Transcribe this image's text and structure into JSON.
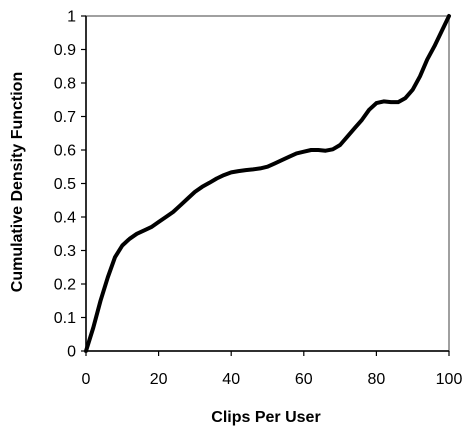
{
  "chart_data": {
    "type": "line",
    "title": "",
    "xlabel": "Clips Per User",
    "ylabel": "Cumulative Density Function",
    "xlim": [
      0,
      100
    ],
    "ylim": [
      0,
      1
    ],
    "x_ticks": [
      0,
      20,
      40,
      60,
      80,
      100
    ],
    "y_ticks": [
      0,
      0.1,
      0.2,
      0.3,
      0.4,
      0.5,
      0.6,
      0.7,
      0.8,
      0.9,
      1
    ],
    "x_tick_labels": [
      "0",
      "20",
      "40",
      "60",
      "80",
      "100"
    ],
    "y_tick_labels": [
      "0",
      "0.1",
      "0.2",
      "0.3",
      "0.4",
      "0.5",
      "0.6",
      "0.7",
      "0.8",
      "0.9",
      "1"
    ],
    "grid": false,
    "legend": "none",
    "series": [
      {
        "color": "#000000",
        "points": [
          [
            0,
            0
          ],
          [
            2,
            0.07
          ],
          [
            4,
            0.15
          ],
          [
            6,
            0.22
          ],
          [
            8,
            0.28
          ],
          [
            10,
            0.315
          ],
          [
            12,
            0.335
          ],
          [
            14,
            0.35
          ],
          [
            16,
            0.36
          ],
          [
            18,
            0.37
          ],
          [
            20,
            0.385
          ],
          [
            22,
            0.4
          ],
          [
            24,
            0.415
          ],
          [
            26,
            0.435
          ],
          [
            28,
            0.455
          ],
          [
            30,
            0.475
          ],
          [
            32,
            0.49
          ],
          [
            34,
            0.502
          ],
          [
            36,
            0.515
          ],
          [
            38,
            0.525
          ],
          [
            40,
            0.533
          ],
          [
            42,
            0.537
          ],
          [
            44,
            0.54
          ],
          [
            46,
            0.542
          ],
          [
            48,
            0.545
          ],
          [
            50,
            0.55
          ],
          [
            52,
            0.56
          ],
          [
            54,
            0.57
          ],
          [
            56,
            0.58
          ],
          [
            58,
            0.59
          ],
          [
            60,
            0.595
          ],
          [
            62,
            0.6
          ],
          [
            64,
            0.6
          ],
          [
            66,
            0.598
          ],
          [
            68,
            0.602
          ],
          [
            70,
            0.615
          ],
          [
            72,
            0.64
          ],
          [
            74,
            0.665
          ],
          [
            76,
            0.69
          ],
          [
            78,
            0.72
          ],
          [
            80,
            0.74
          ],
          [
            82,
            0.745
          ],
          [
            84,
            0.743
          ],
          [
            86,
            0.743
          ],
          [
            88,
            0.755
          ],
          [
            90,
            0.78
          ],
          [
            92,
            0.82
          ],
          [
            94,
            0.87
          ],
          [
            96,
            0.91
          ],
          [
            98,
            0.955
          ],
          [
            100,
            1.0
          ]
        ]
      }
    ]
  }
}
